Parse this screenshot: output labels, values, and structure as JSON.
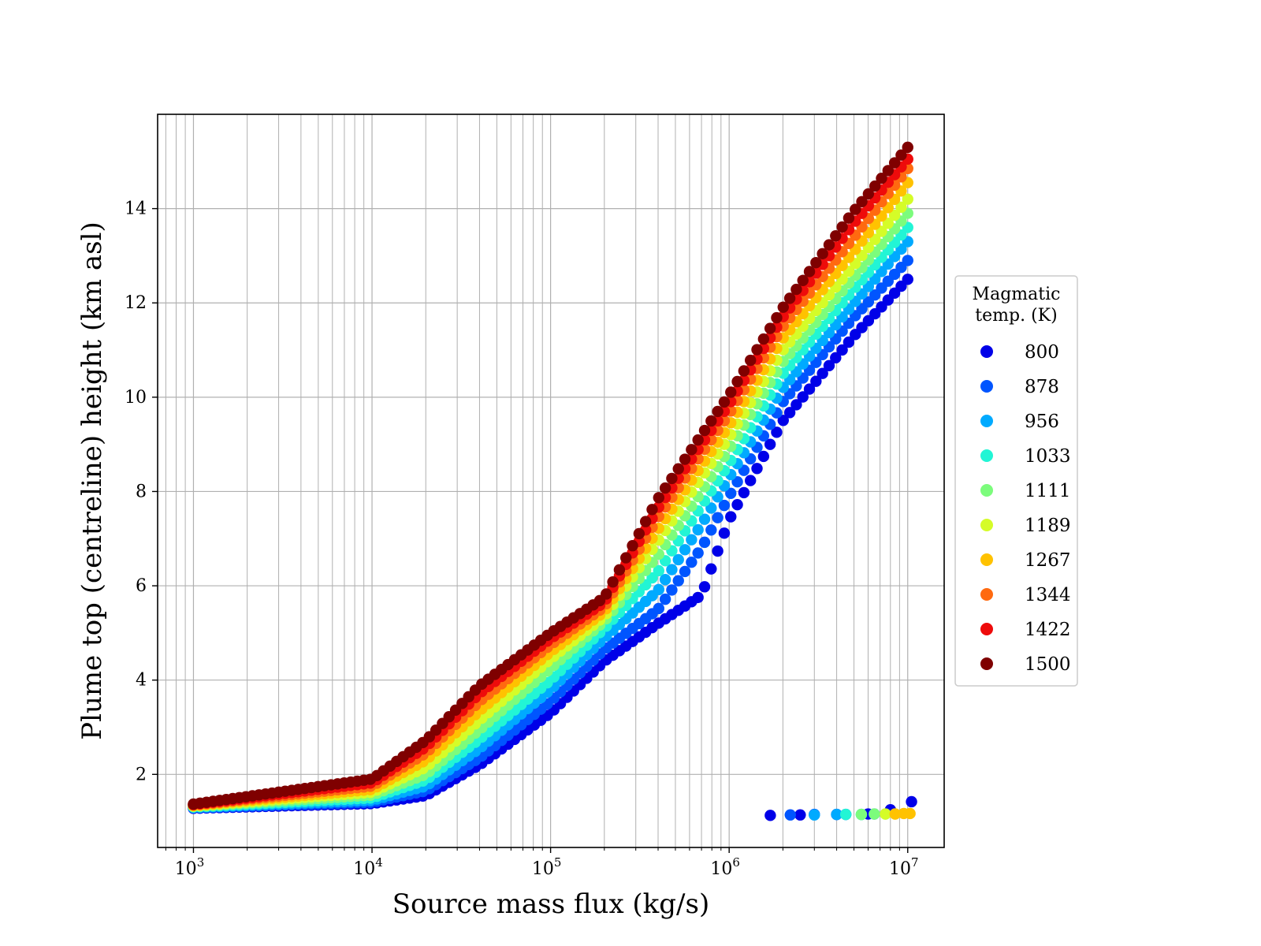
{
  "chart_data": {
    "type": "scatter",
    "title": "",
    "xlabel": "Source mass flux (kg/s)",
    "ylabel": "Plume top (centreline) height (km asl)",
    "xscale": "log",
    "xlim": [
      630,
      16000000
    ],
    "ylim": [
      0.45,
      16.0
    ],
    "xticks": [
      {
        "base": "10",
        "exp": "3",
        "value": 1000
      },
      {
        "base": "10",
        "exp": "4",
        "value": 10000
      },
      {
        "base": "10",
        "exp": "5",
        "value": 100000
      },
      {
        "base": "10",
        "exp": "6",
        "value": 1000000
      },
      {
        "base": "10",
        "exp": "7",
        "value": 10000000
      }
    ],
    "yticks": [
      "2",
      "4",
      "6",
      "8",
      "10",
      "12",
      "14"
    ],
    "grid": true,
    "grid_minor_x": true,
    "legend": {
      "title_line1": "Magmatic",
      "title_line2": "temp. (K)",
      "placement": "right-outside"
    },
    "series": [
      {
        "name": "800",
        "color": "#0000e8",
        "x": [
          1000,
          10000,
          20000,
          40000,
          100000,
          200000,
          400000,
          700000,
          1000000,
          2000000,
          5000000,
          10000000
        ],
        "y": [
          1.28,
          1.38,
          1.55,
          2.2,
          3.3,
          4.4,
          5.2,
          5.8,
          7.4,
          9.5,
          11.3,
          12.5
        ],
        "detached_x": [
          1700000,
          2500000,
          4000000,
          6000000,
          8000000,
          10500000
        ],
        "detached_y": [
          1.13,
          1.14,
          1.15,
          1.16,
          1.25,
          1.42
        ]
      },
      {
        "name": "878",
        "color": "#0055ff",
        "x": [
          1000,
          10000,
          20000,
          40000,
          100000,
          200000,
          400000,
          700000,
          1000000,
          2000000,
          5000000,
          10000000
        ],
        "y": [
          1.29,
          1.41,
          1.65,
          2.35,
          3.55,
          4.65,
          5.5,
          6.8,
          7.9,
          9.9,
          11.7,
          12.9
        ],
        "detached_x": [
          2200000,
          3000000,
          4500000,
          6500000
        ],
        "detached_y": [
          1.14,
          1.15,
          1.15,
          1.16
        ]
      },
      {
        "name": "956",
        "color": "#00aaff",
        "x": [
          1000,
          10000,
          20000,
          40000,
          100000,
          200000,
          400000,
          700000,
          1000000,
          2000000,
          5000000,
          10000000
        ],
        "y": [
          1.3,
          1.45,
          1.75,
          2.55,
          3.8,
          4.9,
          5.9,
          7.3,
          8.3,
          10.2,
          12.0,
          13.3
        ],
        "detached_x": [
          3000000,
          4000000,
          5500000
        ],
        "detached_y": [
          1.14,
          1.15,
          1.15
        ]
      },
      {
        "name": "1033",
        "color": "#22f5d5",
        "x": [
          1000,
          10000,
          20000,
          40000,
          100000,
          200000,
          400000,
          700000,
          1000000,
          2000000,
          5000000,
          10000000
        ],
        "y": [
          1.31,
          1.5,
          1.88,
          2.75,
          4.0,
          5.1,
          6.3,
          7.7,
          8.6,
          10.5,
          12.3,
          13.6
        ],
        "detached_x": [
          4500000,
          5500000
        ],
        "detached_y": [
          1.15,
          1.15
        ]
      },
      {
        "name": "1111",
        "color": "#7cfc7c",
        "x": [
          1000,
          10000,
          20000,
          40000,
          100000,
          200000,
          400000,
          700000,
          1000000,
          2000000,
          5000000,
          10000000
        ],
        "y": [
          1.32,
          1.56,
          2.0,
          2.95,
          4.25,
          5.25,
          6.65,
          8.0,
          8.9,
          10.75,
          12.55,
          13.9
        ],
        "detached_x": [
          5500000,
          6500000,
          7500000
        ],
        "detached_y": [
          1.15,
          1.16,
          1.16
        ]
      },
      {
        "name": "1189",
        "color": "#d5fc28",
        "x": [
          1000,
          10000,
          20000,
          40000,
          100000,
          200000,
          400000,
          700000,
          1000000,
          2000000,
          5000000,
          10000000
        ],
        "y": [
          1.33,
          1.62,
          2.15,
          3.15,
          4.45,
          5.35,
          6.95,
          8.3,
          9.15,
          11.0,
          12.8,
          14.2
        ],
        "detached_x": [
          7500000,
          8500000
        ],
        "detached_y": [
          1.16,
          1.16
        ]
      },
      {
        "name": "1267",
        "color": "#ffc200",
        "x": [
          1000,
          10000,
          20000,
          40000,
          100000,
          200000,
          400000,
          700000,
          1000000,
          2000000,
          5000000,
          10000000
        ],
        "y": [
          1.34,
          1.68,
          2.3,
          3.35,
          4.6,
          5.45,
          7.2,
          8.55,
          9.4,
          11.25,
          13.1,
          14.55
        ],
        "detached_x": [
          8500000,
          9500000,
          10300000
        ],
        "detached_y": [
          1.16,
          1.17,
          1.17
        ]
      },
      {
        "name": "1344",
        "color": "#ff6a10",
        "x": [
          1000,
          10000,
          20000,
          40000,
          100000,
          200000,
          400000,
          700000,
          1000000,
          2000000,
          5000000,
          10000000
        ],
        "y": [
          1.35,
          1.75,
          2.45,
          3.55,
          4.75,
          5.55,
          7.45,
          8.8,
          9.65,
          11.5,
          13.4,
          14.85
        ],
        "detached_x": [],
        "detached_y": []
      },
      {
        "name": "1422",
        "color": "#ee0b0b",
        "x": [
          1000,
          10000,
          20000,
          40000,
          100000,
          200000,
          400000,
          700000,
          1000000,
          2000000,
          5000000,
          10000000
        ],
        "y": [
          1.36,
          1.82,
          2.58,
          3.72,
          4.88,
          5.65,
          7.65,
          9.0,
          9.85,
          11.7,
          13.7,
          15.05
        ],
        "detached_x": [],
        "detached_y": []
      },
      {
        "name": "1500",
        "color": "#7f0000",
        "x": [
          1000,
          10000,
          20000,
          40000,
          100000,
          200000,
          400000,
          700000,
          1000000,
          2000000,
          5000000,
          10000000
        ],
        "y": [
          1.37,
          1.9,
          2.72,
          3.88,
          5.0,
          5.75,
          7.85,
          9.2,
          10.05,
          11.9,
          13.95,
          15.3
        ],
        "detached_x": [],
        "detached_y": []
      }
    ]
  }
}
